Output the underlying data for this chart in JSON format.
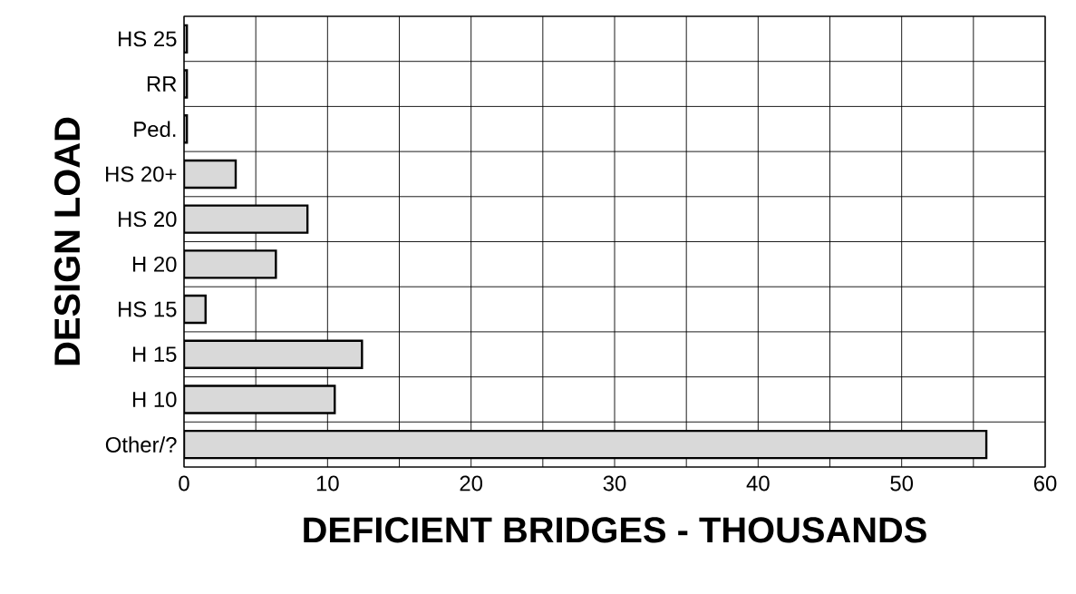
{
  "chart_data": {
    "type": "bar",
    "orientation": "horizontal",
    "xlabel": "DEFICIENT BRIDGES - THOUSANDS",
    "ylabel": "DESIGN LOAD",
    "categories": [
      "HS 25",
      "RR",
      "Ped.",
      "HS 20+",
      "HS 20",
      "H 20",
      "HS 15",
      "H 15",
      "H 10",
      "Other/?"
    ],
    "values": [
      0.2,
      0.2,
      0.2,
      3.6,
      8.6,
      6.4,
      1.5,
      12.4,
      10.5,
      55.9
    ],
    "color": "#d9d9d9",
    "xlim": [
      0,
      60
    ],
    "xticks": [
      0,
      {
        "value": 5,
        "label": null
      },
      10,
      {
        "value": 15,
        "label": null
      },
      20,
      {
        "value": 25,
        "label": null
      },
      30,
      {
        "value": 35,
        "label": null
      },
      40,
      {
        "value": 45,
        "label": null
      },
      50,
      {
        "value": 55,
        "label": null
      },
      60
    ],
    "grid": true
  }
}
